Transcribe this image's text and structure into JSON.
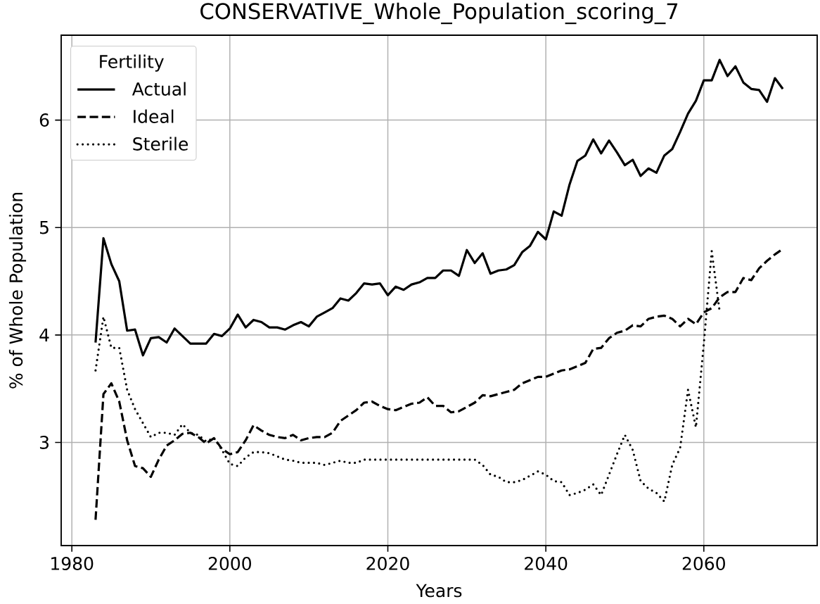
{
  "chart_data": {
    "type": "line",
    "title": "CONSERVATIVE_Whole_Population_scoring_7",
    "xlabel": "Years",
    "ylabel": "% of Whole Population",
    "legend_title": "Fertility",
    "legend": "top left",
    "grid": true,
    "xlim": [
      1978.65,
      2074.35
    ],
    "ylim": [
      2.04,
      6.79
    ],
    "xticks": [
      1980,
      2000,
      2020,
      2040,
      2060
    ],
    "yticks": [
      3,
      4,
      5,
      6
    ],
    "x": [
      1983,
      1984,
      1985,
      1986,
      1987,
      1988,
      1989,
      1990,
      1991,
      1992,
      1993,
      1994,
      1995,
      1996,
      1997,
      1998,
      1999,
      2000,
      2001,
      2002,
      2003,
      2004,
      2005,
      2006,
      2007,
      2008,
      2009,
      2010,
      2011,
      2012,
      2013,
      2014,
      2015,
      2016,
      2017,
      2018,
      2019,
      2020,
      2021,
      2022,
      2023,
      2024,
      2025,
      2026,
      2027,
      2028,
      2029,
      2030,
      2031,
      2032,
      2033,
      2034,
      2035,
      2036,
      2037,
      2038,
      2039,
      2040,
      2041,
      2042,
      2043,
      2044,
      2045,
      2046,
      2047,
      2048,
      2049,
      2050,
      2051,
      2052,
      2053,
      2054,
      2055,
      2056,
      2057,
      2058,
      2059,
      2060,
      2061,
      2062,
      2063,
      2064,
      2065,
      2066,
      2067,
      2068,
      2069,
      2070
    ],
    "series": [
      {
        "name": "Actual",
        "color": "#000000",
        "line_style": "solid",
        "values": [
          3.93,
          4.9,
          4.66,
          4.5,
          4.04,
          4.05,
          3.81,
          3.97,
          3.98,
          3.93,
          4.06,
          3.99,
          3.92,
          3.92,
          3.92,
          4.01,
          3.99,
          4.06,
          4.19,
          4.07,
          4.14,
          4.12,
          4.07,
          4.07,
          4.05,
          4.09,
          4.12,
          4.08,
          4.17,
          4.21,
          4.25,
          4.34,
          4.32,
          4.39,
          4.48,
          4.47,
          4.48,
          4.37,
          4.45,
          4.42,
          4.47,
          4.49,
          4.53,
          4.53,
          4.6,
          4.6,
          4.55,
          4.79,
          4.67,
          4.76,
          4.57,
          4.6,
          4.61,
          4.65,
          4.77,
          4.83,
          4.96,
          4.89,
          5.15,
          5.11,
          5.4,
          5.62,
          5.67,
          5.82,
          5.69,
          5.81,
          5.7,
          5.58,
          5.63,
          5.48,
          5.55,
          5.51,
          5.67,
          5.73,
          5.89,
          6.06,
          6.18,
          6.37,
          6.37,
          6.56,
          6.41,
          6.5,
          6.35,
          6.29,
          6.28,
          6.17,
          6.39,
          6.29
        ]
      },
      {
        "name": "Ideal",
        "color": "#000000",
        "line_style": "dashed",
        "values": [
          2.28,
          3.45,
          3.55,
          3.38,
          3.02,
          2.78,
          2.76,
          2.68,
          2.84,
          2.97,
          3.02,
          3.08,
          3.09,
          3.05,
          2.99,
          3.04,
          2.94,
          2.89,
          2.91,
          3.02,
          3.16,
          3.11,
          3.07,
          3.05,
          3.04,
          3.07,
          3.02,
          3.04,
          3.05,
          3.05,
          3.09,
          3.2,
          3.25,
          3.3,
          3.37,
          3.38,
          3.34,
          3.31,
          3.3,
          3.33,
          3.36,
          3.37,
          3.42,
          3.34,
          3.34,
          3.28,
          3.29,
          3.33,
          3.37,
          3.44,
          3.43,
          3.45,
          3.47,
          3.49,
          3.55,
          3.58,
          3.61,
          3.61,
          3.64,
          3.67,
          3.68,
          3.71,
          3.74,
          3.87,
          3.88,
          3.97,
          4.02,
          4.04,
          4.09,
          4.08,
          4.15,
          4.17,
          4.18,
          4.15,
          4.08,
          4.15,
          4.1,
          4.21,
          4.25,
          4.35,
          4.4,
          4.4,
          4.53,
          4.51,
          4.62,
          4.69,
          4.75,
          4.8
        ]
      },
      {
        "name": "Sterile",
        "color": "#000000",
        "line_style": "dotted",
        "values": [
          3.67,
          4.17,
          3.88,
          3.88,
          3.49,
          3.31,
          3.18,
          3.05,
          3.09,
          3.09,
          3.07,
          3.17,
          3.09,
          3.07,
          3.01,
          3.04,
          2.93,
          2.8,
          2.78,
          2.86,
          2.91,
          2.91,
          2.9,
          2.87,
          2.84,
          2.83,
          2.81,
          2.81,
          2.81,
          2.79,
          2.81,
          2.83,
          2.81,
          2.81,
          2.84,
          2.84,
          2.84,
          2.84,
          2.84,
          2.84,
          2.84,
          2.84,
          2.84,
          2.84,
          2.84,
          2.84,
          2.84,
          2.84,
          2.84,
          2.79,
          2.7,
          2.68,
          2.63,
          2.63,
          2.65,
          2.69,
          2.73,
          2.7,
          2.64,
          2.63,
          2.51,
          2.53,
          2.56,
          2.61,
          2.51,
          2.7,
          2.89,
          3.07,
          2.93,
          2.64,
          2.57,
          2.53,
          2.45,
          2.79,
          2.95,
          3.49,
          3.14,
          3.92,
          4.78,
          4.22,
          null,
          null,
          null,
          null,
          null,
          null,
          null,
          null
        ]
      }
    ]
  }
}
